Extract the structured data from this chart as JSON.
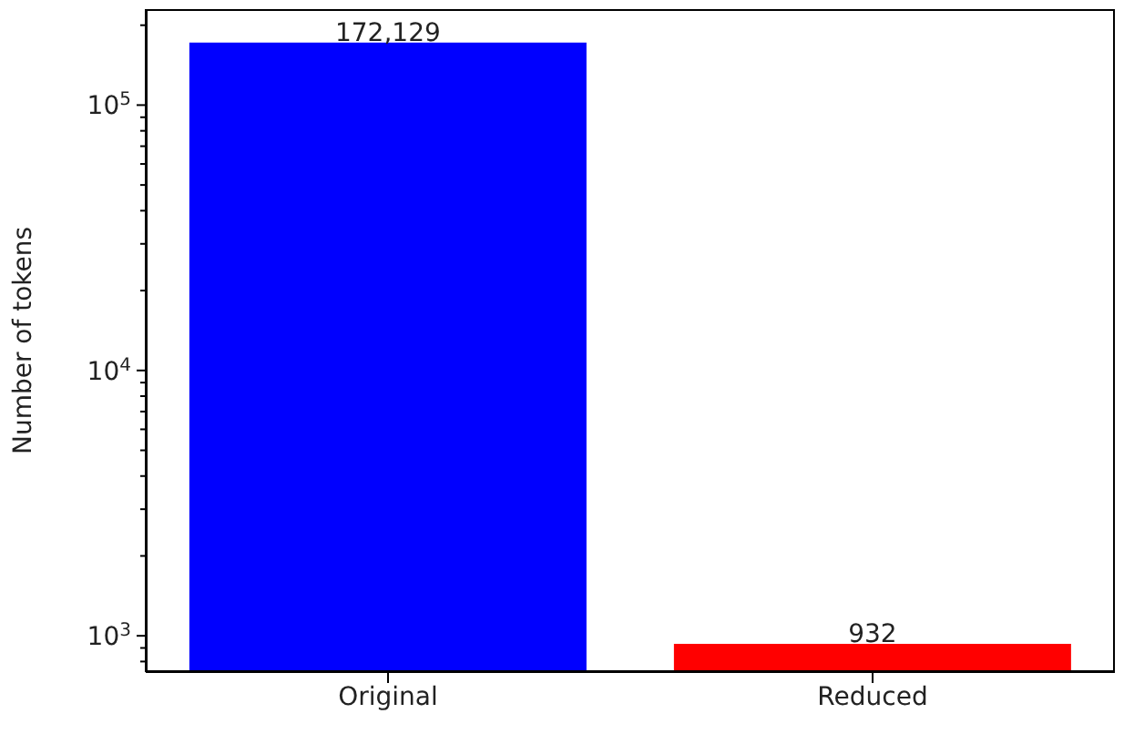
{
  "chart_data": {
    "type": "bar",
    "ylabel": "Number of tokens",
    "categories": [
      "Original",
      "Reduced"
    ],
    "values": [
      172129,
      932
    ],
    "colors": [
      "#0000ff",
      "#ff0000"
    ],
    "value_labels": [
      "172,129",
      "932"
    ],
    "log": "y",
    "ylim": [
      730,
      230000
    ],
    "yticks": [
      {
        "value": 800,
        "label": null
      },
      {
        "value": 900,
        "label": null
      },
      {
        "value": 1000,
        "label": "10$^{3}$"
      },
      {
        "value": 2000,
        "label": null
      },
      {
        "value": 3000,
        "label": null
      },
      {
        "value": 4000,
        "label": null
      },
      {
        "value": 5000,
        "label": null
      },
      {
        "value": 6000,
        "label": null
      },
      {
        "value": 7000,
        "label": null
      },
      {
        "value": 8000,
        "label": null
      },
      {
        "value": 9000,
        "label": null
      },
      {
        "value": 10000,
        "label": "10$^{4}$"
      },
      {
        "value": 20000,
        "label": null
      },
      {
        "value": 30000,
        "label": null
      },
      {
        "value": 40000,
        "label": null
      },
      {
        "value": 50000,
        "label": null
      },
      {
        "value": 60000,
        "label": null
      },
      {
        "value": 70000,
        "label": null
      },
      {
        "value": 80000,
        "label": null
      },
      {
        "value": 90000,
        "label": null
      },
      {
        "value": 100000,
        "label": "10$^{5}$"
      },
      {
        "value": 200000,
        "label": null
      }
    ],
    "grid": false,
    "legend": false
  }
}
